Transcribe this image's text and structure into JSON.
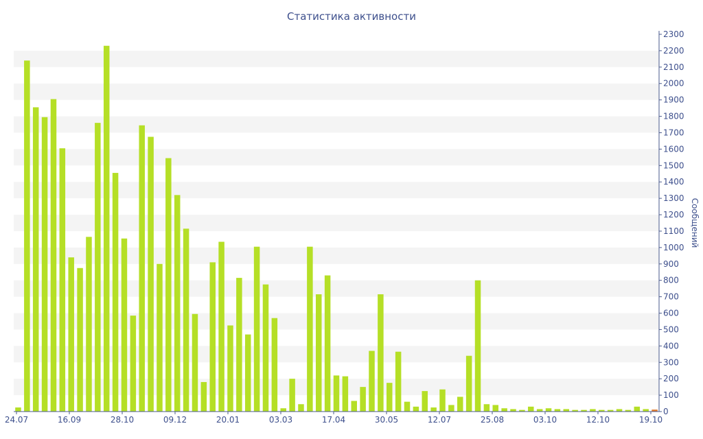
{
  "chart_data": {
    "type": "bar",
    "title": "Статистика активности",
    "ylabel": "Сообщений",
    "xlabel": "",
    "ylim": [
      0,
      2300
    ],
    "ytick_step": 100,
    "y_axis_side": "right",
    "grid": "alternating horizontal bands",
    "x_tick_labels": [
      "24.07",
      "16.09",
      "28.10",
      "09.12",
      "20.01",
      "03.03",
      "17.04",
      "30.05",
      "12.07",
      "25.08",
      "03.10",
      "12.10",
      "19.10"
    ],
    "series": [
      {
        "color": "#b5df26",
        "values": [
          25,
          2140,
          1855,
          1795,
          1905,
          1605,
          940,
          875,
          1065,
          1760,
          2230,
          1455,
          1055,
          585,
          1745,
          1675,
          900,
          1545,
          1320,
          1115,
          595,
          180,
          910,
          1035,
          525,
          815,
          470,
          1005,
          775,
          570,
          20,
          200,
          45,
          1005,
          715,
          830,
          220,
          215,
          65,
          150,
          370,
          715,
          175,
          365,
          60,
          30,
          125,
          25,
          135,
          40,
          90,
          340,
          800,
          45,
          40,
          20,
          15,
          10,
          30,
          15,
          20,
          15,
          15,
          10,
          10,
          15,
          10,
          10,
          15,
          10,
          30,
          15,
          12
        ]
      }
    ],
    "highlight_bar_color": "#e07b2e"
  }
}
